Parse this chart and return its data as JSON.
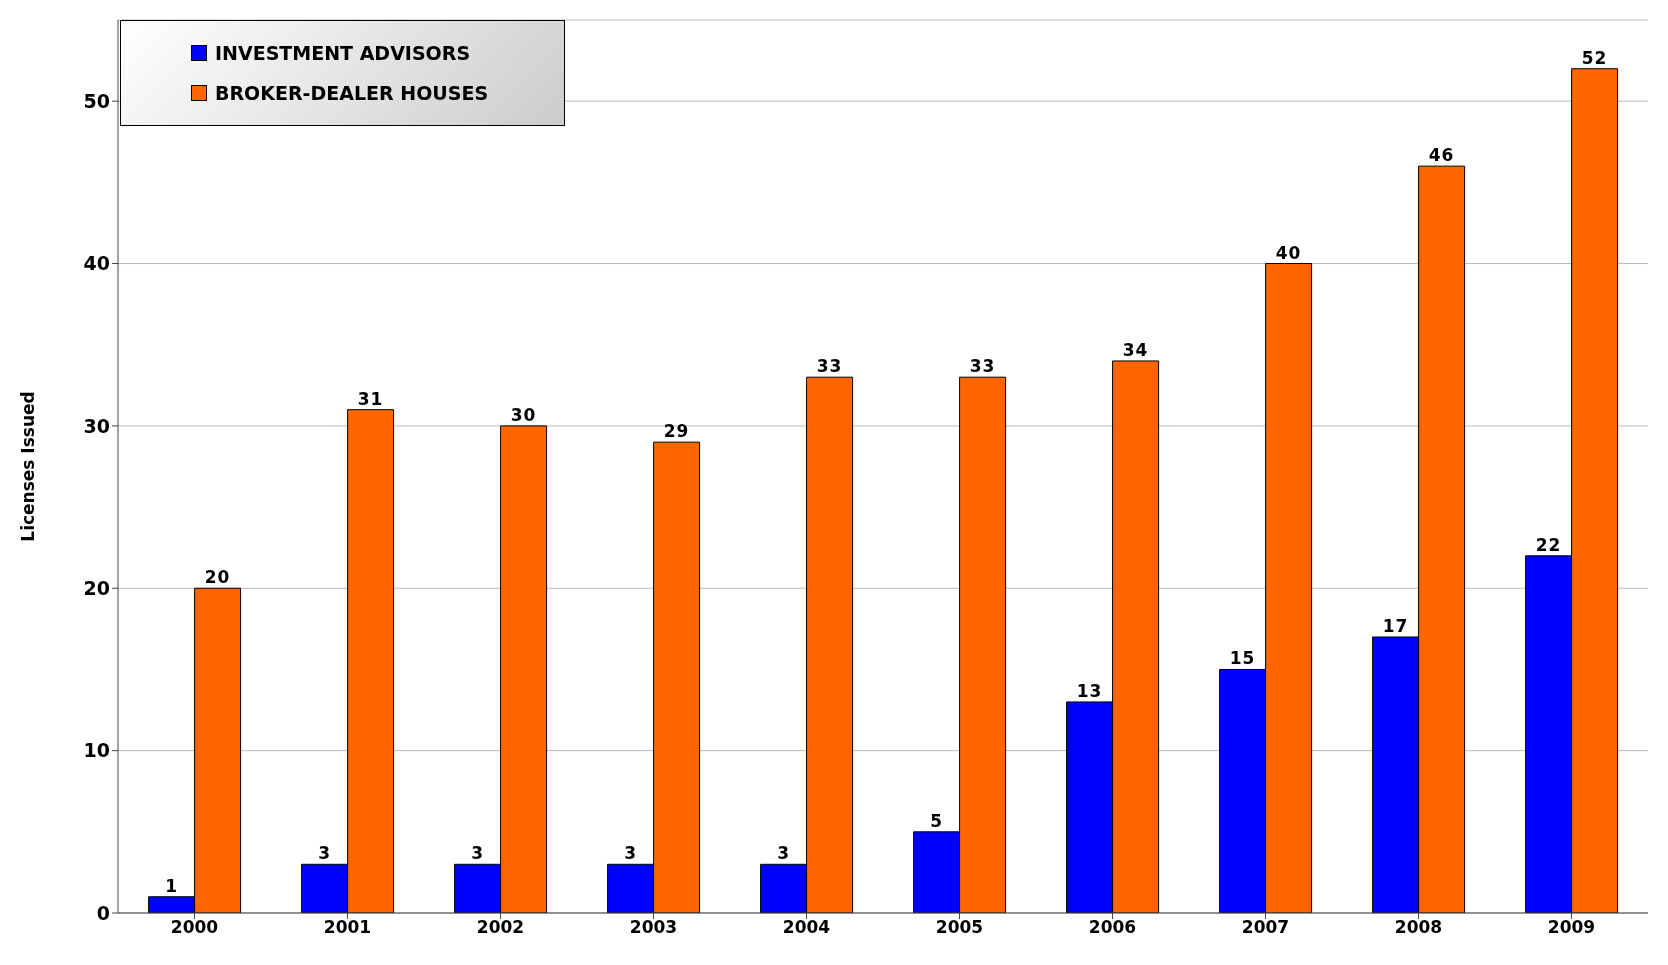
{
  "chart_data": {
    "type": "bar",
    "ylabel": "Licenses Issued",
    "categories": [
      "2000",
      "2001",
      "2002",
      "2003",
      "2004",
      "2005",
      "2006",
      "2007",
      "2008",
      "2009"
    ],
    "series": [
      {
        "name": "INVESTMENT ADVISORS",
        "color": "#0000ff",
        "values": [
          1,
          3,
          3,
          3,
          3,
          5,
          13,
          15,
          17,
          22
        ]
      },
      {
        "name": "BROKER-DEALER HOUSES",
        "color": "#ff6600",
        "values": [
          20,
          31,
          30,
          29,
          33,
          33,
          34,
          40,
          46,
          52
        ]
      }
    ],
    "ylim": [
      0,
      55
    ],
    "yticks": [
      0,
      10,
      20,
      30,
      40,
      50
    ],
    "grid": "y",
    "legend": "top left",
    "data_labels": true
  }
}
